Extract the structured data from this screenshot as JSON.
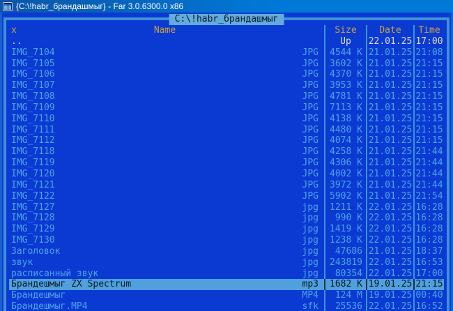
{
  "window": {
    "title": "{C:\\!habr_брандашмыг} - Far 3.0.6300.0 x86",
    "app_icon": "far-manager-icon"
  },
  "panel": {
    "path": "C:\\!habr_брандашмыг",
    "sort_indicator": "x",
    "columns": {
      "name": "Name",
      "size": "Size",
      "date": "Date",
      "time": "Time"
    },
    "files": [
      {
        "name": "..",
        "ext": "",
        "size": "Up",
        "date": "22.01.25",
        "time": "17:00",
        "type": "updir",
        "cursor": false
      },
      {
        "name": "IMG_7104",
        "ext": "JPG",
        "size": "4544 K",
        "date": "21.01.25",
        "time": "21:08",
        "type": "file",
        "cursor": false
      },
      {
        "name": "IMG_7105",
        "ext": "JPG",
        "size": "3602 K",
        "date": "21.01.25",
        "time": "21:15",
        "type": "file",
        "cursor": false
      },
      {
        "name": "IMG_7106",
        "ext": "JPG",
        "size": "4370 K",
        "date": "21.01.25",
        "time": "21:15",
        "type": "file",
        "cursor": false
      },
      {
        "name": "IMG_7107",
        "ext": "JPG",
        "size": "3953 K",
        "date": "21.01.25",
        "time": "21:15",
        "type": "file",
        "cursor": false
      },
      {
        "name": "IMG_7108",
        "ext": "JPG",
        "size": "4781 K",
        "date": "21.01.25",
        "time": "21:15",
        "type": "file",
        "cursor": false
      },
      {
        "name": "IMG_7109",
        "ext": "JPG",
        "size": "7113 K",
        "date": "21.01.25",
        "time": "21:15",
        "type": "file",
        "cursor": false
      },
      {
        "name": "IMG_7110",
        "ext": "JPG",
        "size": "4138 K",
        "date": "21.01.25",
        "time": "21:15",
        "type": "file",
        "cursor": false
      },
      {
        "name": "IMG_7111",
        "ext": "JPG",
        "size": "4480 K",
        "date": "21.01.25",
        "time": "21:15",
        "type": "file",
        "cursor": false
      },
      {
        "name": "IMG_7112",
        "ext": "JPG",
        "size": "4074 K",
        "date": "21.01.25",
        "time": "21:15",
        "type": "file",
        "cursor": false
      },
      {
        "name": "IMG_7118",
        "ext": "JPG",
        "size": "4258 K",
        "date": "21.01.25",
        "time": "21:44",
        "type": "file",
        "cursor": false
      },
      {
        "name": "IMG_7119",
        "ext": "JPG",
        "size": "4306 K",
        "date": "21.01.25",
        "time": "21:44",
        "type": "file",
        "cursor": false
      },
      {
        "name": "IMG_7120",
        "ext": "JPG",
        "size": "4002 K",
        "date": "21.01.25",
        "time": "21:44",
        "type": "file",
        "cursor": false
      },
      {
        "name": "IMG_7121",
        "ext": "JPG",
        "size": "3972 K",
        "date": "21.01.25",
        "time": "21:44",
        "type": "file",
        "cursor": false
      },
      {
        "name": "IMG_7122",
        "ext": "JPG",
        "size": "5902 K",
        "date": "21.01.25",
        "time": "21:54",
        "type": "file",
        "cursor": false
      },
      {
        "name": "IMG_7127",
        "ext": "jpg",
        "size": "1211 K",
        "date": "22.01.25",
        "time": "16:28",
        "type": "file",
        "cursor": false
      },
      {
        "name": "IMG_7128",
        "ext": "jpg",
        "size": "990 K",
        "date": "22.01.25",
        "time": "16:28",
        "type": "file",
        "cursor": false
      },
      {
        "name": "IMG_7129",
        "ext": "jpg",
        "size": "1419 K",
        "date": "22.01.25",
        "time": "16:28",
        "type": "file",
        "cursor": false
      },
      {
        "name": "IMG_7130",
        "ext": "jpg",
        "size": "1238 K",
        "date": "22.01.25",
        "time": "16:28",
        "type": "file",
        "cursor": false
      },
      {
        "name": "Заголовок",
        "ext": "jpg",
        "size": "47686",
        "date": "21.01.25",
        "time": "18:37",
        "type": "file",
        "cursor": false
      },
      {
        "name": "звук",
        "ext": "jpg",
        "size": "243819",
        "date": "22.01.25",
        "time": "16:53",
        "type": "file",
        "cursor": false
      },
      {
        "name": "расписанный звук",
        "ext": "jpg",
        "size": "80354",
        "date": "22.01.25",
        "time": "17:00",
        "type": "file",
        "cursor": false
      },
      {
        "name": "Брандешмыг ZX Spectrum",
        "ext": "mp3",
        "size": "1682 K",
        "date": "19.01.25",
        "time": "21:15",
        "type": "file",
        "cursor": true
      },
      {
        "name": "Брандешмыг",
        "ext": "MP4",
        "size": "124 M",
        "date": "19.01.25",
        "time": "00:40",
        "type": "file",
        "cursor": false
      },
      {
        "name": "Брандешмыг.MP4",
        "ext": "sfk",
        "size": "25536",
        "date": "22.01.25",
        "time": "16:52",
        "type": "file",
        "cursor": false
      }
    ]
  },
  "theme": {
    "console_bg": "#0B3AD3",
    "file_text": "#4DA4E4",
    "border": "#3E92D8",
    "header_text": "#C9A03C",
    "updir_text": "#DCDCDC",
    "cursor_bg": "#4FA0DC",
    "cursor_text": "#0A1826",
    "titlebar_left": "#0D55A7",
    "titlebar_right": "#0078D7",
    "frame": "#1A5FD0",
    "panel_title_bg": "#63AADD"
  }
}
